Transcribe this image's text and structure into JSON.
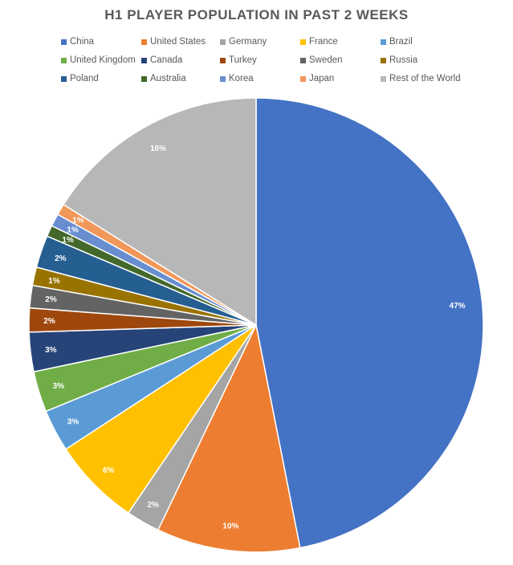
{
  "chart_data": {
    "type": "pie",
    "title": "H1 PLAYER POPULATION IN PAST 2 WEEKS",
    "legend_position": "top",
    "slices": [
      {
        "name": "China",
        "value": 46.9,
        "label": "47%",
        "color": "#4472c4"
      },
      {
        "name": "United States",
        "value": 10.2,
        "label": "10%",
        "color": "#ed7d31"
      },
      {
        "name": "Germany",
        "value": 2.4,
        "label": "2%",
        "color": "#a5a5a5"
      },
      {
        "name": "France",
        "value": 6.3,
        "label": "6%",
        "color": "#ffc000"
      },
      {
        "name": "Brazil",
        "value": 3.0,
        "label": "3%",
        "color": "#5b9bd5"
      },
      {
        "name": "United Kingdom",
        "value": 2.9,
        "label": "3%",
        "color": "#70ad47"
      },
      {
        "name": "Canada",
        "value": 2.8,
        "label": "3%",
        "color": "#264478"
      },
      {
        "name": "Turkey",
        "value": 1.7,
        "label": "2%",
        "color": "#9e480e"
      },
      {
        "name": "Sweden",
        "value": 1.6,
        "label": "2%",
        "color": "#636363"
      },
      {
        "name": "Russia",
        "value": 1.3,
        "label": "1%",
        "color": "#997300"
      },
      {
        "name": "Poland",
        "value": 2.3,
        "label": "2%",
        "color": "#255e91"
      },
      {
        "name": "Australia",
        "value": 0.8,
        "label": "1%",
        "color": "#43682b"
      },
      {
        "name": "Korea",
        "value": 0.9,
        "label": "1%",
        "color": "#698ed0"
      },
      {
        "name": "Japan",
        "value": 0.8,
        "label": "1%",
        "color": "#f1975a"
      },
      {
        "name": "Rest of the World",
        "value": 16.1,
        "label": "16%",
        "color": "#b7b7b7"
      }
    ]
  }
}
